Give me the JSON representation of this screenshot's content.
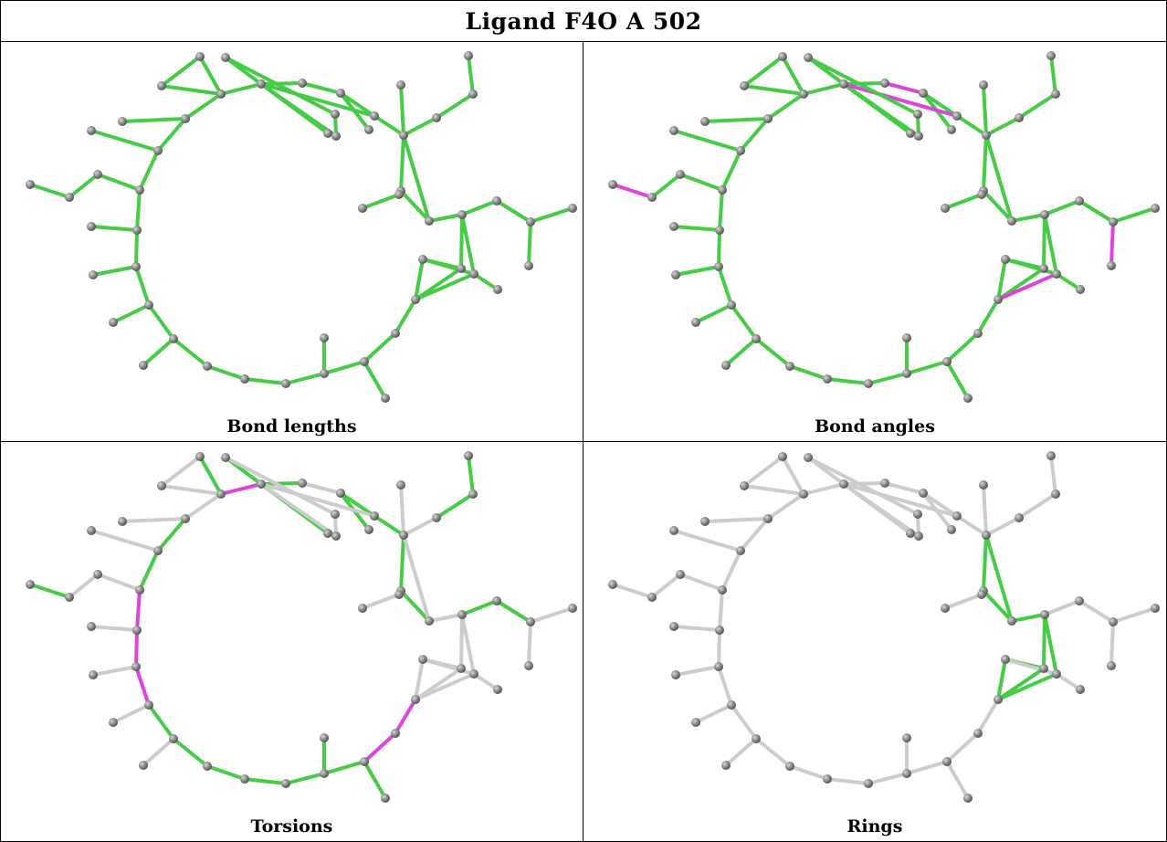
{
  "title": "Ligand F4O A 502",
  "colors": {
    "green": "#44cc44",
    "magenta": "#dd44dd",
    "grey": "#cccccc",
    "atom": "#8c8c8c"
  },
  "panels": [
    {
      "caption": "Bond lengths",
      "colors": "G"
    },
    {
      "caption": "Bond angles",
      "colors": "GGGGGGGGGGGGGGGGGGGGGGGGGGGGGGGGGGGGGGGGMGGGGGGGGGGMGGGGGMGMMG"
    },
    {
      "caption": "Torsions",
      "colors": "XXXXXXXXXXXXXXXXXXXXXXXXXXXXXXXXXXXXXXXXXXXXXXXXXXXXXXXXXXXXXXX"
    },
    {
      "caption": "Rings",
      "colors": "XXXXXXXXXXXXXXXXXXXXXXXXXXXXXXXXXXXXXXXXXXXXXXXXXXXXXXXXXXXXXXX"
    }
  ]
}
